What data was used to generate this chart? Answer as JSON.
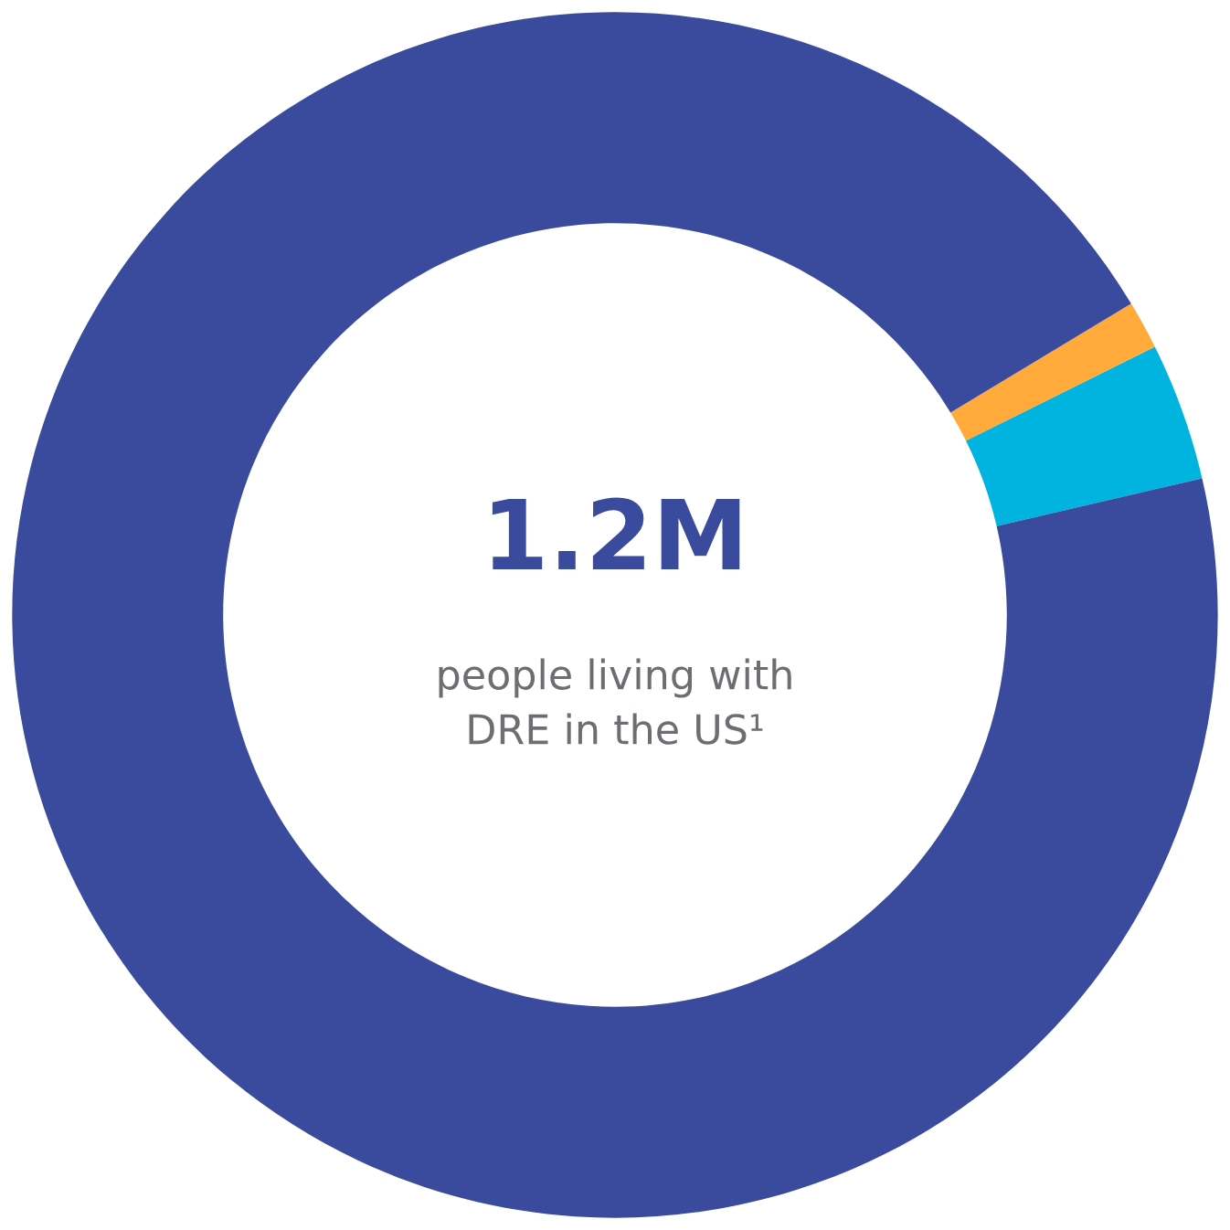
{
  "chart_data": {
    "type": "donut",
    "title": "1.2M",
    "subtitle": "people living with\nDRE in the US¹",
    "categories": [
      null,
      null,
      null
    ],
    "values": [
      3.7,
      1.3,
      95.0
    ],
    "colors": [
      "#00b4e0",
      "#ffaa3b",
      "#3a4a9c"
    ]
  }
}
